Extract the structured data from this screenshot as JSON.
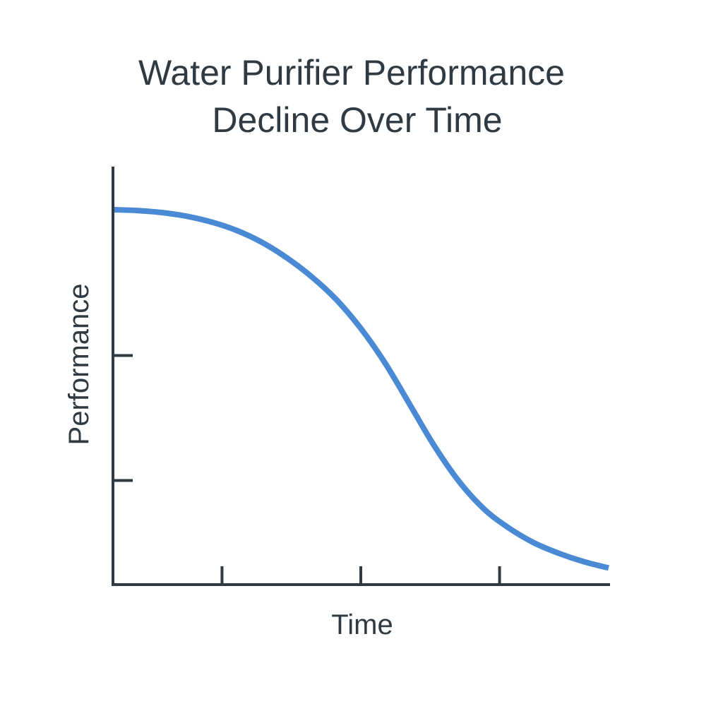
{
  "chart_data": {
    "type": "line",
    "title": [
      "Water Purifier Performance",
      "Decline Over Time"
    ],
    "xlabel": "Time",
    "ylabel": "Performance",
    "tick_labels_shown": false,
    "grid": false,
    "legend": "none",
    "xlim": [
      0,
      1
    ],
    "ylim": [
      0,
      1
    ],
    "x_ticks": [
      0.22,
      0.5,
      0.78
    ],
    "y_ticks": [
      0.25,
      0.55
    ],
    "series": [
      {
        "color": "#4a8ad4",
        "x": [
          0.0,
          0.05,
          0.1,
          0.15,
          0.2,
          0.25,
          0.3,
          0.35,
          0.4,
          0.45,
          0.5,
          0.55,
          0.6,
          0.65,
          0.7,
          0.75,
          0.8,
          0.85,
          0.9,
          0.95,
          1.0
        ],
        "y": [
          0.9,
          0.898,
          0.893,
          0.884,
          0.87,
          0.85,
          0.822,
          0.785,
          0.74,
          0.685,
          0.615,
          0.53,
          0.43,
          0.33,
          0.245,
          0.18,
          0.135,
          0.1,
          0.075,
          0.055,
          0.04
        ]
      }
    ]
  }
}
